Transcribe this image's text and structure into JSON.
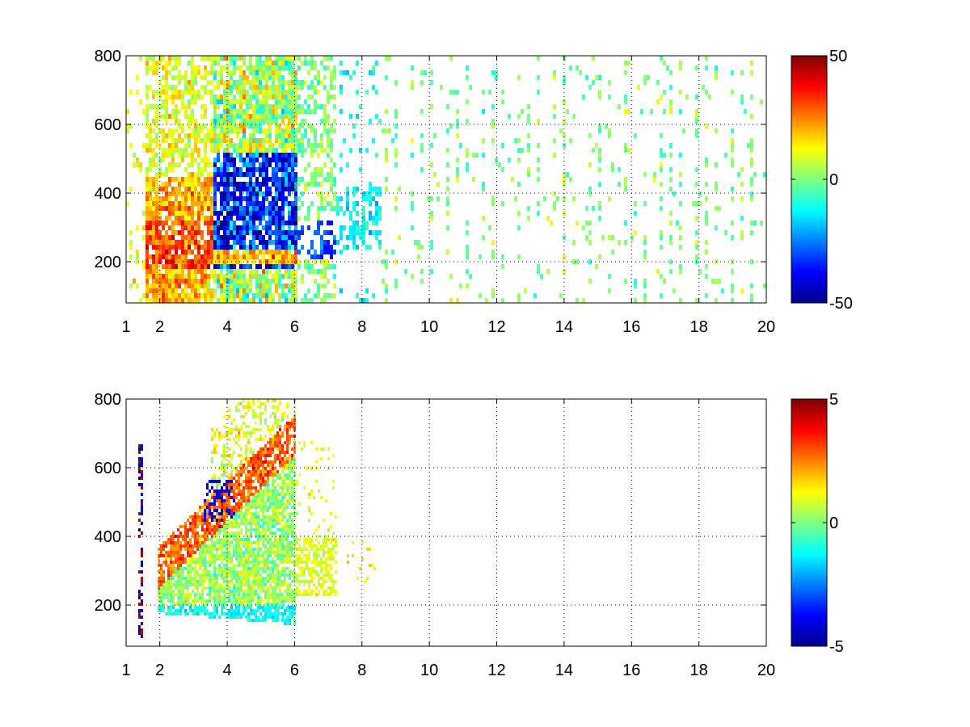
{
  "colormap": [
    "#00008f",
    "#0000ff",
    "#00ffff",
    "#ffff00",
    "#ff0000",
    "#800000"
  ],
  "chart_data": [
    {
      "type": "heatmap",
      "title": "",
      "xlabel": "",
      "ylabel": "",
      "xlim": [
        1,
        20
      ],
      "ylim": [
        80,
        800
      ],
      "xticks": [
        1,
        2,
        4,
        6,
        8,
        10,
        12,
        14,
        16,
        18,
        20
      ],
      "xtick_labels": [
        "1",
        "2",
        "4",
        "6",
        "8",
        "10",
        "12",
        "14",
        "16",
        "18",
        "20"
      ],
      "yticks": [
        200,
        400,
        600,
        800
      ],
      "ytick_labels": [
        "200",
        "400",
        "600",
        "800"
      ],
      "grid": true,
      "colorbar": {
        "range": [
          -50,
          50
        ],
        "tick_values": [
          50,
          0,
          -50
        ],
        "tick_labels": [
          "50",
          "0",
          "-50"
        ]
      },
      "features": [
        {
          "region": "low band x 1.5-4, y 200-320",
          "value": 35
        },
        {
          "region": "core x 3.5-6, y 220-500",
          "value": -40
        },
        {
          "region": "tail x 6-8, y 220-320",
          "value": -20
        },
        {
          "region": "upper x 2-6, y 400-800",
          "value": 10
        },
        {
          "region": "sparse columns x 6-20",
          "value": 0
        }
      ]
    },
    {
      "type": "heatmap",
      "title": "",
      "xlabel": "",
      "ylabel": "",
      "xlim": [
        1,
        20
      ],
      "ylim": [
        80,
        800
      ],
      "xticks": [
        1,
        2,
        4,
        6,
        8,
        10,
        12,
        14,
        16,
        18,
        20
      ],
      "xtick_labels": [
        "1",
        "2",
        "4",
        "6",
        "8",
        "10",
        "12",
        "14",
        "16",
        "18",
        "20"
      ],
      "yticks": [
        200,
        400,
        600,
        800
      ],
      "ytick_labels": [
        "200",
        "400",
        "600",
        "800"
      ],
      "grid": true,
      "colorbar": {
        "range": [
          -5,
          5
        ],
        "tick_values": [
          5,
          0,
          -5
        ],
        "tick_labels": [
          "5",
          "0",
          "-5"
        ]
      },
      "features": [
        {
          "region": "orange band x 2-4, y 300-400",
          "value": 3
        },
        {
          "region": "blue streak x 3.5-4, y 450-560",
          "value": -4
        },
        {
          "region": "bulk x 2-6, y 160-500",
          "value": 0.5
        },
        {
          "region": "small patch x 6-7, y 250-380",
          "value": 1
        }
      ]
    }
  ]
}
